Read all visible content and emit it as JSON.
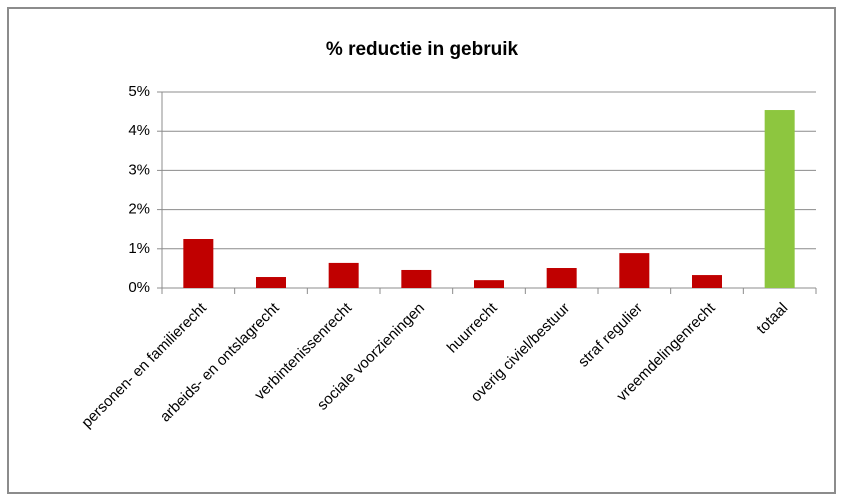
{
  "chart_data": {
    "type": "bar",
    "title": "% reductie in gebruik",
    "categories": [
      "personen- en familierecht",
      "arbeids- en ontslagrecht",
      "verbintenissenrecht",
      "sociale voorzieningen",
      "huurrecht",
      "overig civiel/bestuur",
      "straf regulier",
      "vreemdelingenrecht",
      "totaal"
    ],
    "values": [
      1.25,
      0.28,
      0.64,
      0.46,
      0.2,
      0.51,
      0.89,
      0.33,
      4.54
    ],
    "colors": [
      "#c00000",
      "#c00000",
      "#c00000",
      "#c00000",
      "#c00000",
      "#c00000",
      "#c00000",
      "#c00000",
      "#8dc63f"
    ],
    "ylim": [
      0,
      5
    ],
    "yticks": [
      {
        "value": 0,
        "label": "0%"
      },
      {
        "value": 1,
        "label": "1%"
      },
      {
        "value": 2,
        "label": "2%"
      },
      {
        "value": 3,
        "label": "3%"
      },
      {
        "value": 4,
        "label": "4%"
      },
      {
        "value": 5,
        "label": "5%"
      }
    ],
    "grid": true
  }
}
